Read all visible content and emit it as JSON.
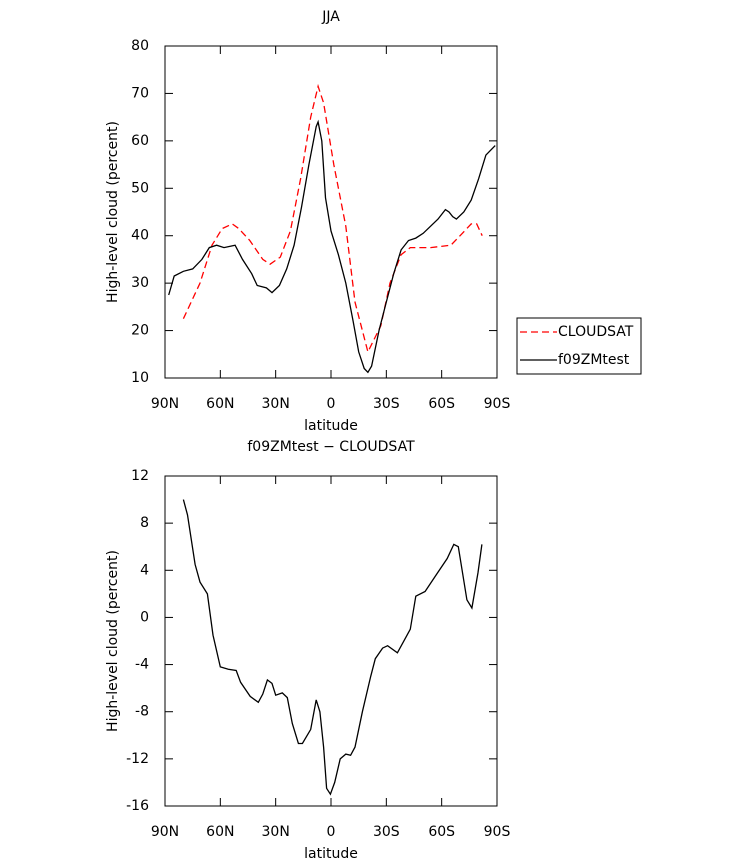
{
  "chart_data": [
    {
      "type": "line",
      "title": "JJA",
      "x_label": "latitude",
      "y_label": "High-level cloud (percent)",
      "xlim": [
        90,
        -90
      ],
      "xticks": [
        {
          "value": 90,
          "label": "90N"
        },
        {
          "value": 60,
          "label": "60N"
        },
        {
          "value": 30,
          "label": "30N"
        },
        0,
        {
          "value": -30,
          "label": "30S"
        },
        {
          "value": -60,
          "label": "60S"
        },
        {
          "value": -90,
          "label": "90S"
        }
      ],
      "ylim": [
        10,
        80
      ],
      "yticks": [
        10,
        20,
        30,
        40,
        50,
        60,
        70,
        80
      ],
      "legend": "outside-right",
      "series": [
        {
          "name": "CLOUDSAT",
          "color": "#ff0000",
          "dash": true,
          "x": [
            80,
            71,
            64.5,
            59,
            53.5,
            50,
            44,
            37,
            33,
            27.5,
            22,
            16.5,
            11,
            7,
            4,
            -1.5,
            -8,
            -13,
            -20,
            -27,
            -32,
            -38,
            -43,
            -54,
            -65,
            -70,
            -76,
            -79,
            -82
          ],
          "values": [
            22.5,
            30,
            38,
            41.5,
            42.5,
            41.5,
            39,
            35,
            34,
            35.5,
            41,
            52,
            65,
            71.5,
            68,
            55,
            42,
            26,
            15.5,
            21,
            30,
            36,
            37.5,
            37.5,
            38,
            40,
            42.5,
            42.5,
            40
          ]
        },
        {
          "name": "f09ZMtest",
          "color": "#000000",
          "dash": false,
          "x": [
            88,
            85,
            80,
            75,
            70,
            66,
            62,
            58,
            52,
            48,
            43,
            40,
            35,
            32,
            28,
            24,
            20,
            16,
            12,
            8,
            7,
            5,
            3,
            0,
            -4,
            -8,
            -12,
            -15,
            -18,
            -20,
            -22,
            -26,
            -30,
            -34,
            -38,
            -42,
            -46,
            -50,
            -54,
            -58,
            -62,
            -64,
            -66,
            -68,
            -72,
            -76,
            -80,
            -84,
            -89
          ],
          "values": [
            27.5,
            31.5,
            32.5,
            33,
            35,
            37.5,
            38,
            37.5,
            38,
            35,
            32,
            29.5,
            29,
            28,
            29.5,
            33,
            38,
            46,
            55,
            63,
            64,
            60,
            48,
            41,
            36,
            30,
            22,
            15.5,
            12,
            11.2,
            12.5,
            20,
            26,
            32,
            37,
            39,
            39.5,
            40.5,
            42,
            43.5,
            45.5,
            45,
            44,
            43.5,
            45,
            47.5,
            52,
            57,
            59
          ]
        }
      ]
    },
    {
      "type": "line",
      "title": "f09ZMtest − CLOUDSAT",
      "x_label": "latitude",
      "y_label": "High-level cloud (percent)",
      "xlim": [
        90,
        -90
      ],
      "xticks": [
        {
          "value": 90,
          "label": "90N"
        },
        {
          "value": 60,
          "label": "60N"
        },
        {
          "value": 30,
          "label": "30N"
        },
        0,
        {
          "value": -30,
          "label": "30S"
        },
        {
          "value": -60,
          "label": "60S"
        },
        {
          "value": -90,
          "label": "90S"
        }
      ],
      "ylim": [
        -16,
        12
      ],
      "yticks": [
        -16,
        -12,
        -8,
        -4,
        0,
        4,
        8,
        12
      ],
      "series": [
        {
          "color": "#000000",
          "dash": false,
          "x": [
            80,
            77.8,
            73.7,
            71,
            67,
            64,
            60,
            55.7,
            51.4,
            49,
            43.8,
            39.4,
            37,
            34.5,
            32,
            30,
            26.4,
            23.7,
            21,
            17.7,
            15.5,
            11,
            8,
            6,
            4,
            2.4,
            0.3,
            -2,
            -5,
            -8,
            -10.6,
            -13,
            -17,
            -21.5,
            -24,
            -28,
            -30.7,
            -36,
            -43,
            -46,
            -51,
            -57,
            -63,
            -66.6,
            -69,
            -73.7,
            -76.4,
            -79.7,
            -81.8
          ],
          "values": [
            10,
            8.7,
            4.5,
            3,
            2,
            -1.5,
            -4.2,
            -4.4,
            -4.5,
            -5.5,
            -6.7,
            -7.2,
            -6.5,
            -5.3,
            -5.6,
            -6.6,
            -6.4,
            -6.8,
            -9,
            -10.7,
            -10.7,
            -9.5,
            -7,
            -8,
            -11,
            -14.5,
            -15,
            -14,
            -12,
            -11.6,
            -11.7,
            -11,
            -8,
            -5,
            -3.5,
            -2.6,
            -2.4,
            -3,
            -1,
            1.8,
            2.2,
            3.6,
            5,
            6.2,
            6,
            1.5,
            0.8,
            3.8,
            6.2
          ]
        }
      ]
    }
  ]
}
